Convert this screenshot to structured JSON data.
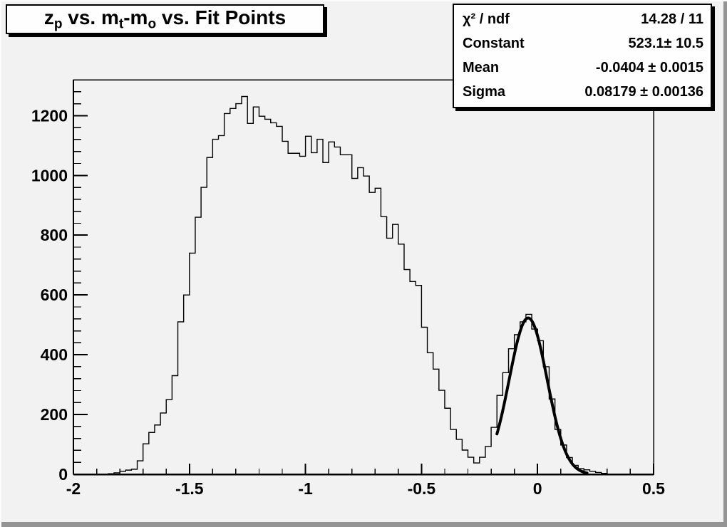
{
  "window": {
    "background": "#f2f2f2",
    "bevel_highlight": "#fcfcfc",
    "bevel_shadow": "#949494",
    "line_color": "#000000",
    "pave_background": "#fefefe"
  },
  "title_box": {
    "plain": "z_p vs. m_t-m_o vs. Fit Points",
    "segments": [
      {
        "text": "z"
      },
      {
        "sub": "p"
      },
      {
        "text": " vs. m"
      },
      {
        "sub": "t"
      },
      {
        "text": "-m"
      },
      {
        "sub": "o"
      },
      {
        "text": " vs. Fit Points"
      }
    ]
  },
  "stats_box": {
    "rows": [
      {
        "label": "χ² / ndf",
        "value": "14.28 / 11"
      },
      {
        "label": "Constant",
        "value": "523.1± 10.5"
      },
      {
        "label": "Mean",
        "value": "-0.0404 ± 0.0015"
      },
      {
        "label": "Sigma",
        "value": "0.08179 ± 0.00136"
      }
    ]
  },
  "chart_data": {
    "type": "bar",
    "subtype": "step-histogram",
    "title": "z_p vs. m_t-m_o vs. Fit Points",
    "xlabel": "",
    "ylabel": "",
    "xlim": [
      -2,
      0.5
    ],
    "ylim": [
      0,
      1320
    ],
    "grid": false,
    "legend": false,
    "x_ticks": [
      -2,
      -1.5,
      -1,
      -0.5,
      0,
      0.5
    ],
    "x_tick_labels": [
      "-2",
      "-1.5",
      "-1",
      "-0.5",
      "0",
      "0.5"
    ],
    "x_minor_step": 0.1,
    "y_ticks": [
      0,
      200,
      400,
      600,
      800,
      1000,
      1200
    ],
    "y_tick_labels": [
      "0",
      "200",
      "400",
      "600",
      "800",
      "1000",
      "1200"
    ],
    "y_minor_step": 40,
    "bin_start": -2.0,
    "bin_width": 0.025,
    "values": [
      0,
      0,
      0,
      0,
      0,
      0,
      2,
      5,
      10,
      14,
      17,
      45,
      102,
      140,
      165,
      205,
      250,
      330,
      510,
      600,
      740,
      860,
      960,
      1060,
      1121,
      1133,
      1207,
      1224,
      1240,
      1264,
      1174,
      1229,
      1198,
      1188,
      1176,
      1164,
      1114,
      1074,
      1074,
      1064,
      1131,
      1076,
      1121,
      1043,
      1112,
      1095,
      1069,
      1069,
      990,
      1026,
      998,
      943,
      957,
      862,
      790,
      836,
      770,
      685,
      645,
      632,
      492,
      407,
      352,
      281,
      221,
      150,
      117,
      81,
      57,
      38,
      57,
      93,
      157,
      264,
      340,
      420,
      467,
      510,
      535,
      486,
      447,
      360,
      252,
      150,
      98,
      56,
      30,
      19,
      15,
      10,
      6,
      3,
      0,
      0,
      0,
      0,
      0,
      0,
      0,
      0
    ],
    "fit": {
      "type": "gaussian",
      "chi2": 14.28,
      "ndf": 11,
      "constant": 523.1,
      "constant_err": 10.5,
      "mean": -0.0404,
      "mean_err": 0.0015,
      "sigma": 0.08179,
      "sigma_err": 0.00136,
      "draw_range": [
        -0.175,
        0.215
      ],
      "color": "#000000",
      "stroke_width": 4
    }
  }
}
